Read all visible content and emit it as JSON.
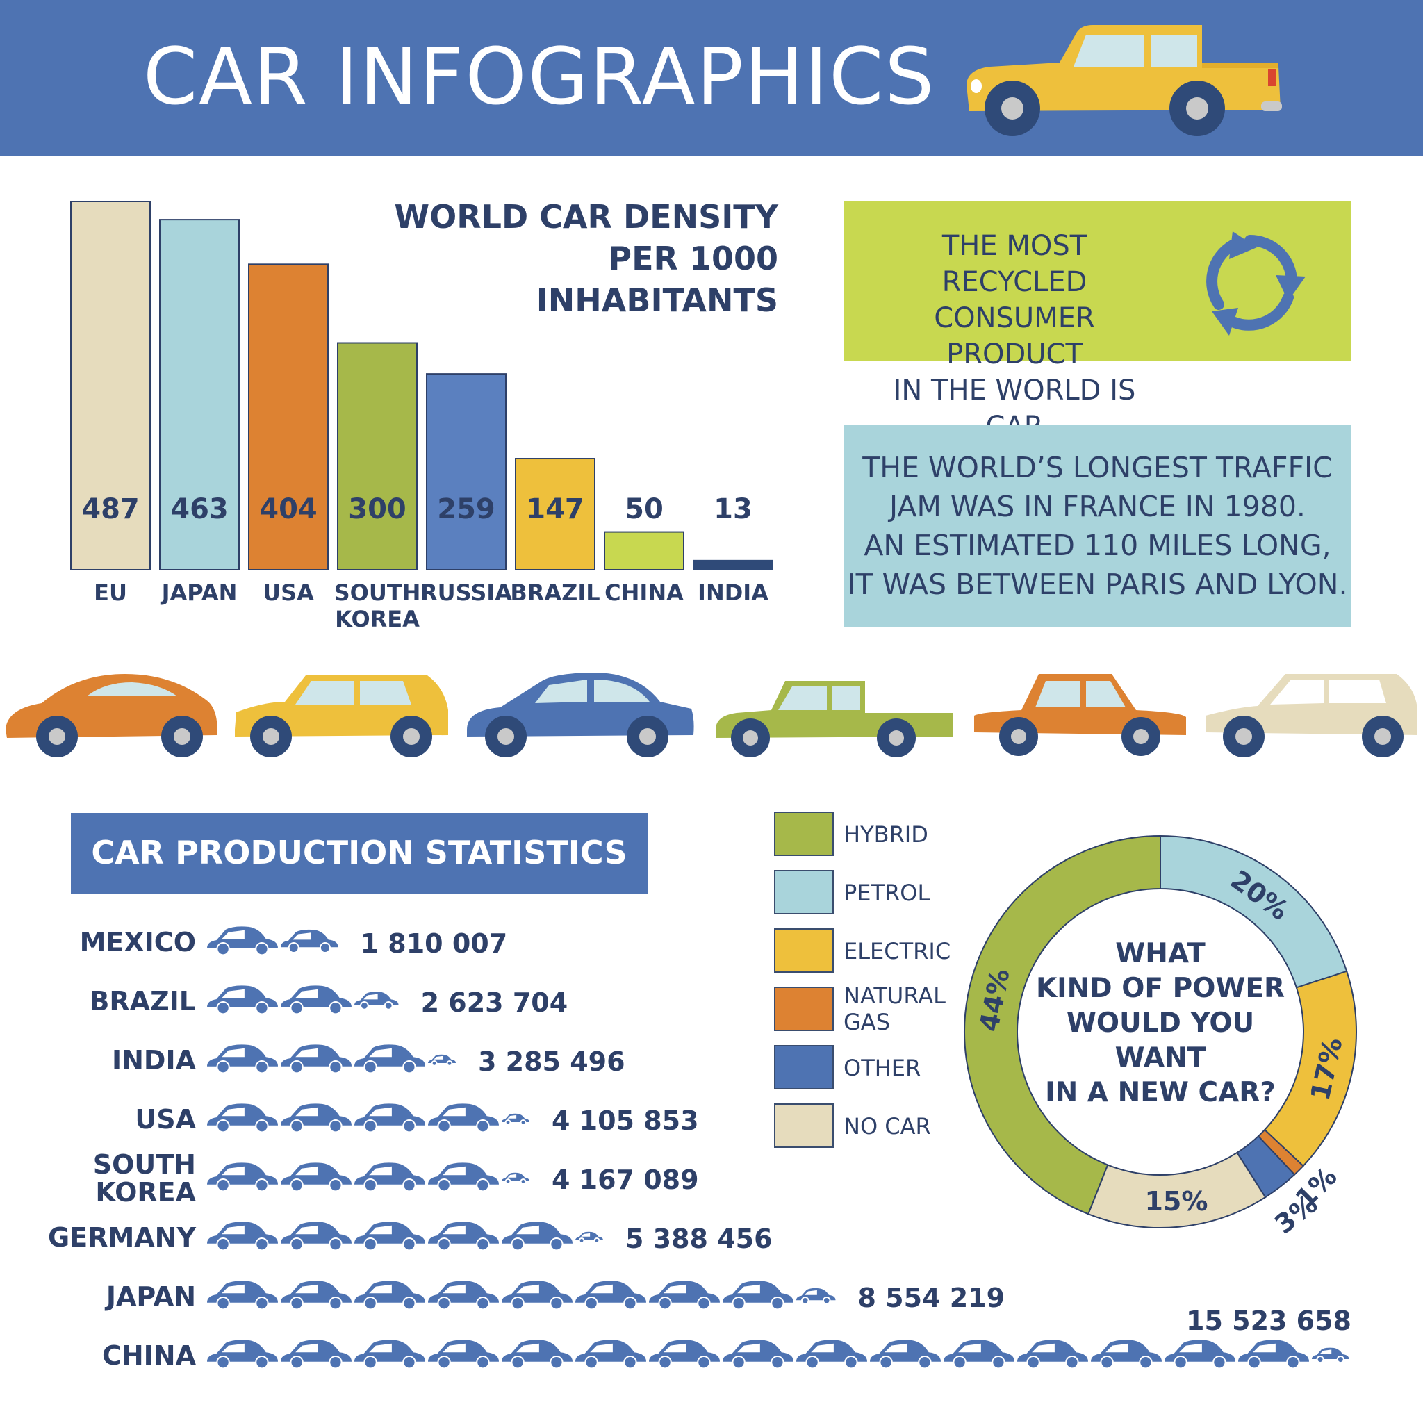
{
  "header": {
    "title": "CAR INFOGRAPHICS"
  },
  "colors": {
    "navy": "#2e4068",
    "blue": "#4e73b2",
    "beige": "#e6dcbd",
    "light_blue": "#a9d4db",
    "orange": "#dd8232",
    "green": "#a6b84a",
    "mid_blue": "#5b80bf",
    "yellow": "#eec03c",
    "lime": "#c8d850",
    "dark_navy": "#2f4a78"
  },
  "recycle": {
    "lines": [
      "THE MOST RECYCLED",
      "CONSUMER PRODUCT",
      "IN THE WORLD IS CAR"
    ]
  },
  "traffic_jam": {
    "lines": [
      "THE WORLD’S LONGEST TRAFFIC",
      "JAM WAS IN FRANCE IN 1980.",
      "AN ESTIMATED 110 MILES LONG,",
      "IT WAS BETWEEN PARIS AND LYON."
    ]
  },
  "chart_data": [
    {
      "type": "bar",
      "title_lines": [
        "WORLD CAR DENSITY",
        "PER 1000 INHABITANTS"
      ],
      "categories": [
        "EU",
        "JAPAN",
        "USA",
        "SOUTH KOREA",
        "RUSSIA",
        "BRAZIL",
        "CHINA",
        "INDIA"
      ],
      "category_lines": [
        [
          "EU"
        ],
        [
          "JAPAN"
        ],
        [
          "USA"
        ],
        [
          "SOUTH",
          "KOREA"
        ],
        [
          "RUSSIA"
        ],
        [
          "BRAZIL"
        ],
        [
          "CHINA"
        ],
        [
          "INDIA"
        ]
      ],
      "values": [
        487,
        463,
        404,
        300,
        259,
        147,
        50,
        13
      ],
      "labels": [
        "487",
        "463",
        "404",
        "300",
        "259",
        "147",
        "50",
        "13"
      ],
      "colors": [
        "#e6dcbd",
        "#a9d4db",
        "#dd8232",
        "#a6b84a",
        "#5b80bf",
        "#eec03c",
        "#c8d850",
        "#2f4a78"
      ]
    },
    {
      "type": "bar",
      "title": "CAR PRODUCTION STATISTICS",
      "orientation": "horizontal",
      "categories": [
        "MEXICO",
        "BRAZIL",
        "INDIA",
        "USA",
        "SOUTH KOREA",
        "GERMANY",
        "JAPAN",
        "CHINA"
      ],
      "category_lines": [
        [
          "MEXICO"
        ],
        [
          "BRAZIL"
        ],
        [
          "INDIA"
        ],
        [
          "USA"
        ],
        [
          "SOUTH",
          "KOREA"
        ],
        [
          "GERMANY"
        ],
        [
          "JAPAN"
        ],
        [
          "CHINA"
        ]
      ],
      "values": [
        1810007,
        2623704,
        3285496,
        4105853,
        4167089,
        5388456,
        8554219,
        15523658
      ],
      "labels": [
        "1 810 007",
        "2 623 704",
        "3 285 496",
        "4 105 853",
        "4 167 089",
        "5 388 456",
        "8 554 219",
        "15 523 658"
      ]
    },
    {
      "type": "pie",
      "title_lines": [
        "WHAT",
        "KIND OF POWER",
        "WOULD YOU WANT",
        "IN A NEW CAR?"
      ],
      "categories": [
        "HYBRID",
        "PETROL",
        "ELECTRIC",
        "NATURAL GAS",
        "OTHER",
        "NO CAR"
      ],
      "legend_lines": [
        [
          "HYBRID"
        ],
        [
          "PETROL"
        ],
        [
          "ELECTRIC"
        ],
        [
          "NATURAL",
          "GAS"
        ],
        [
          "OTHER"
        ],
        [
          "NO CAR"
        ]
      ],
      "values": [
        44,
        20,
        17,
        1,
        3,
        15
      ],
      "labels": [
        "44%",
        "20%",
        "17%",
        "1%",
        "3%",
        "15%"
      ],
      "colors": [
        "#a6b84a",
        "#a9d4db",
        "#eec03c",
        "#dd8232",
        "#4e73b2",
        "#e6dcbd"
      ]
    }
  ]
}
